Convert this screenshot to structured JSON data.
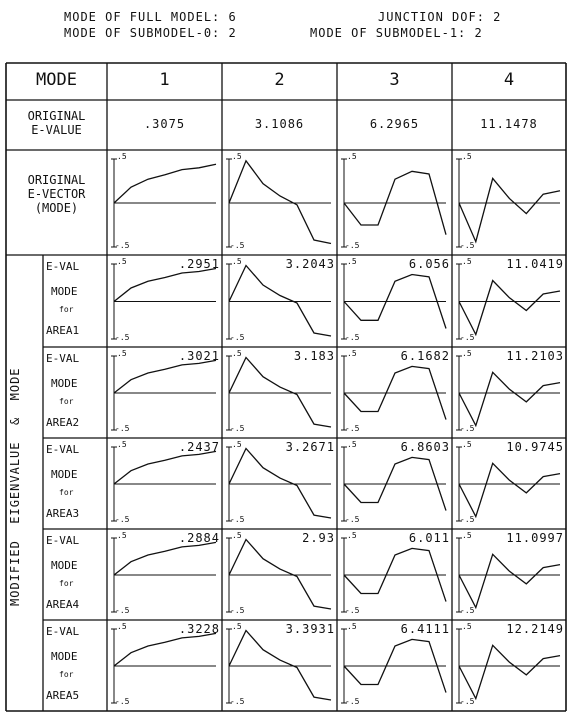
{
  "header": {
    "line1_left": "MODE OF FULL MODEL: 6",
    "line1_right": "JUNCTION DOF: 2",
    "line2_left": "MODE OF SUBMODEL-0: 2",
    "line2_right": "MODE OF SUBMODEL-1: 2"
  },
  "table": {
    "mode_header": "MODE",
    "mode_numbers": [
      "1",
      "2",
      "3",
      "4"
    ],
    "original_evalue_label": [
      "ORIGINAL",
      "E-VALUE"
    ],
    "original_evalues": [
      ".3075",
      "3.1086",
      "6.2965",
      "11.1478"
    ],
    "original_evector_label": [
      "ORIGINAL",
      "E-VECTOR",
      "(MODE)"
    ],
    "side_label": "MODIFIED  EIGENVALUE  &  MODE",
    "sub_labels": {
      "eval": "E-VAL",
      "mode": "MODE",
      "for": "for"
    },
    "areas": [
      "AREA1",
      "AREA2",
      "AREA3",
      "AREA4",
      "AREA5"
    ],
    "modified_evalues": [
      [
        ".2951",
        "3.2043",
        "6.056",
        "11.0419"
      ],
      [
        ".3021",
        "3.183",
        "6.1682",
        "11.2103"
      ],
      [
        ".2437",
        "3.2671",
        "6.8603",
        "10.9745"
      ],
      [
        ".2884",
        "2.93",
        "6.011",
        "11.0997"
      ],
      [
        ".3228",
        "3.3931",
        "6.4111",
        "12.2149"
      ]
    ],
    "axis_top": ".5",
    "axis_bottom": "-.5"
  },
  "mode_shapes": [
    [
      0,
      0.18,
      0.27,
      0.32,
      0.38,
      0.4,
      0.44
    ],
    [
      0,
      0.48,
      0.22,
      0.08,
      -0.02,
      -0.42,
      -0.46
    ],
    [
      0,
      -0.25,
      -0.25,
      0.27,
      0.36,
      0.33,
      -0.36
    ],
    [
      0,
      -0.44,
      0.28,
      0.05,
      -0.12,
      0.1,
      0.14
    ]
  ]
}
